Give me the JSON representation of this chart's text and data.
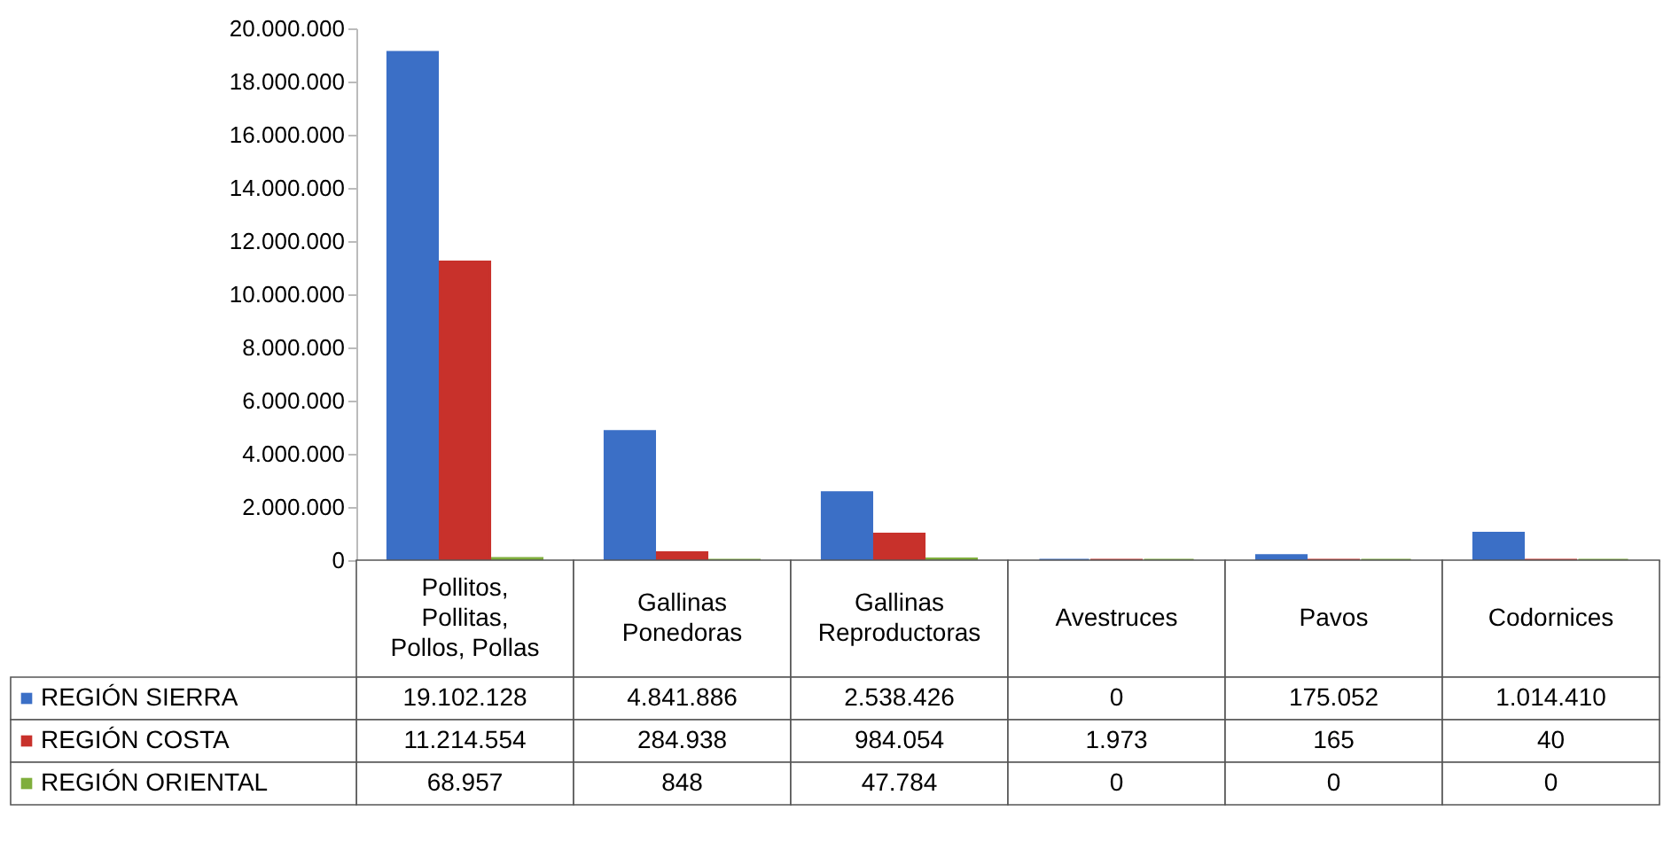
{
  "chart_data": {
    "type": "bar",
    "categories": [
      "Pollitos, Pollitas, Pollos, Pollas",
      "Gallinas Ponedoras",
      "Gallinas Reproductoras",
      "Avestruces",
      "Pavos",
      "Codornices"
    ],
    "series": [
      {
        "name": "REGIÓN SIERRA",
        "color": "#3b6fc6",
        "values": [
          19102128,
          4841886,
          2538426,
          0,
          175052,
          1014410
        ],
        "value_labels": [
          "19.102.128",
          "4.841.886",
          "2.538.426",
          "0",
          "175.052",
          "1.014.410"
        ]
      },
      {
        "name": "REGIÓN COSTA",
        "color": "#c8312b",
        "values": [
          11214554,
          284938,
          984054,
          1973,
          165,
          40
        ],
        "value_labels": [
          "11.214.554",
          "284.938",
          "984.054",
          "1.973",
          "165",
          "40"
        ]
      },
      {
        "name": "REGIÓN ORIENTAL",
        "color": "#7fae3c",
        "values": [
          68957,
          848,
          47784,
          0,
          0,
          0
        ],
        "value_labels": [
          "68.957",
          "848",
          "47.784",
          "0",
          "0",
          "0"
        ]
      }
    ],
    "ylim": [
      0,
      20000000
    ],
    "yticks": [
      {
        "value": 0,
        "label": "0"
      },
      {
        "value": 2000000,
        "label": "2.000.000"
      },
      {
        "value": 4000000,
        "label": "4.000.000"
      },
      {
        "value": 6000000,
        "label": "6.000.000"
      },
      {
        "value": 8000000,
        "label": "8.000.000"
      },
      {
        "value": 10000000,
        "label": "10.000.000"
      },
      {
        "value": 12000000,
        "label": "12.000.000"
      },
      {
        "value": 14000000,
        "label": "14.000.000"
      },
      {
        "value": 16000000,
        "label": "16.000.000"
      },
      {
        "value": 18000000,
        "label": "18.000.000"
      },
      {
        "value": 20000000,
        "label": "20.000.000"
      }
    ],
    "grid": false,
    "legend": "bottom left"
  }
}
